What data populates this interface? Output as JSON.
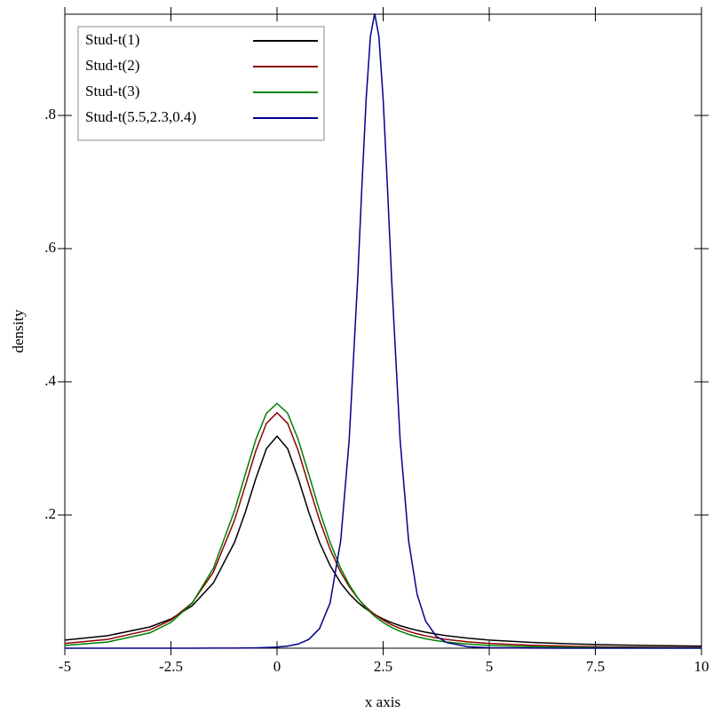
{
  "chart_data": {
    "type": "line",
    "xlabel": "x axis",
    "ylabel": "density",
    "x": [
      -5,
      -4,
      -3,
      -2.5,
      -2,
      -1.5,
      -1,
      -0.75,
      -0.5,
      -0.25,
      0,
      0.25,
      0.5,
      0.75,
      1,
      1.25,
      1.5,
      1.7,
      1.9,
      2,
      2.1,
      2.2,
      2.3,
      2.4,
      2.5,
      2.6,
      2.7,
      2.9,
      3.1,
      3.3,
      3.5,
      3.75,
      4,
      4.5,
      5,
      6,
      7,
      8,
      9,
      10
    ],
    "series": [
      {
        "name": "Stud-t(1)",
        "color": "#000000",
        "values": [
          0.01224,
          0.01872,
          0.03183,
          0.0439,
          0.06366,
          0.09794,
          0.15915,
          0.20372,
          0.25465,
          0.29959,
          0.31831,
          0.29959,
          0.25465,
          0.20372,
          0.15915,
          0.12422,
          0.09794,
          0.08183,
          0.06905,
          0.06366,
          0.05884,
          0.0545,
          0.05061,
          0.04709,
          0.0439,
          0.04102,
          0.0384,
          0.03383,
          0.03,
          0.02677,
          0.02402,
          0.02113,
          0.01872,
          0.01498,
          0.01224,
          0.0086,
          0.00637,
          0.0049,
          0.00388,
          0.00315
        ]
      },
      {
        "name": "Stud-t(2)",
        "color": "#8b0000",
        "values": [
          0.00713,
          0.01309,
          0.02741,
          0.0422,
          0.06804,
          0.11413,
          0.19245,
          0.24378,
          0.2963,
          0.33761,
          0.35355,
          0.33761,
          0.2963,
          0.24378,
          0.19245,
          0.14872,
          0.11413,
          0.09248,
          0.07526,
          0.06804,
          0.06162,
          0.0559,
          0.0508,
          0.04626,
          0.0422,
          0.03857,
          0.03532,
          0.02977,
          0.02528,
          0.02161,
          0.01859,
          0.01553,
          0.01309,
          0.00953,
          0.00713,
          0.00427,
          0.00275,
          0.00187,
          0.00132,
          0.00097
        ]
      },
      {
        "name": "Stud-t(3)",
        "color": "#008000",
        "values": [
          0.00422,
          0.00916,
          0.02297,
          0.03866,
          0.06751,
          0.12002,
          0.20675,
          0.26064,
          0.31318,
          0.3527,
          0.36755,
          0.3527,
          0.31318,
          0.26064,
          0.20675,
          0.15891,
          0.12002,
          0.09535,
          0.07571,
          0.06751,
          0.06025,
          0.05382,
          0.04813,
          0.04311,
          0.03866,
          0.03473,
          0.03124,
          0.02541,
          0.0208,
          0.01715,
          0.01422,
          0.01136,
          0.00916,
          0.00612,
          0.00422,
          0.00217,
          0.00122,
          0.00074,
          0.00047,
          0.00031
        ]
      },
      {
        "name": "Stud-t(5.5,2.3,0.4)",
        "color": "#00008b",
        "values": [
          0,
          0,
          1e-05,
          2e-05,
          4e-05,
          9e-05,
          0.00021,
          0.00033,
          0.00055,
          0.00095,
          0.0017,
          0.00319,
          0.00631,
          0.01321,
          0.02926,
          0.06803,
          0.1613,
          0.31265,
          0.55374,
          0.69448,
          0.8248,
          0.91864,
          0.953,
          0.91864,
          0.8248,
          0.69448,
          0.55374,
          0.31265,
          0.1613,
          0.08082,
          0.04082,
          0.01804,
          0.00842,
          0.00217,
          0.00068,
          0.0001,
          2e-05,
          1e-05,
          1e-05,
          0
        ]
      }
    ],
    "xlim": [
      -5,
      10
    ],
    "ylim": [
      0,
      0.952
    ],
    "xticks": [
      -5,
      -2.5,
      0,
      2.5,
      5,
      7.5,
      10
    ],
    "yticks": [
      {
        "value": 0.2,
        "label": ".2"
      },
      {
        "value": 0.4,
        "label": ".4"
      },
      {
        "value": 0.6,
        "label": ".6"
      },
      {
        "value": 0.8,
        "label": ".8"
      }
    ],
    "legend": "upper left"
  }
}
